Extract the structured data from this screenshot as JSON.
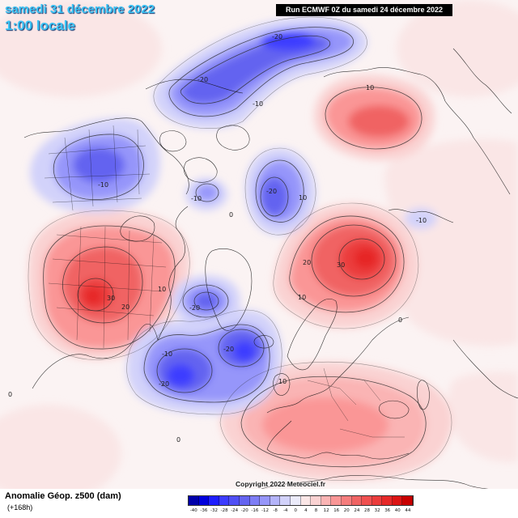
{
  "header": {
    "valid_date": "samedi 31 décembre 2022",
    "valid_time": "1:00 locale",
    "run_info": "Run ECMWF 0Z du samedi 24 décembre 2022",
    "title_color": "#3cc4f5"
  },
  "map": {
    "contour_labels": [
      "-20",
      "-20",
      "-10",
      "10",
      "-10",
      "-20",
      "-10",
      "10",
      "-10",
      "0",
      "20",
      "30",
      "10",
      "30",
      "20",
      "-20",
      "10",
      "0",
      "-10",
      "-20",
      "-20",
      "10",
      "0",
      "0"
    ],
    "contour_color": "#2b2b2b",
    "coastline_color": "#111111"
  },
  "legend": {
    "title": "Anomalie Géop. z500 (dam)",
    "lead_time": "(+168h)",
    "ticks": [
      "-40",
      "-36",
      "-32",
      "-28",
      "-24",
      "-20",
      "-16",
      "-12",
      "-8",
      "-4",
      "0",
      "4",
      "8",
      "12",
      "16",
      "20",
      "24",
      "28",
      "32",
      "36",
      "40",
      "44"
    ],
    "colors": [
      "#0000aa",
      "#0000dc",
      "#1e1eff",
      "#3c3cff",
      "#5050f5",
      "#6464f0",
      "#7d7df5",
      "#9696fa",
      "#b4b4fa",
      "#d2d2fa",
      "#ebebfa",
      "#fae6e6",
      "#fad2d2",
      "#fab4b4",
      "#fa9696",
      "#f57d7d",
      "#f06464",
      "#f05050",
      "#eb3c3c",
      "#e62828",
      "#dc1414",
      "#c80000"
    ]
  },
  "copyright": "Copyright 2022 Meteociel.fr"
}
